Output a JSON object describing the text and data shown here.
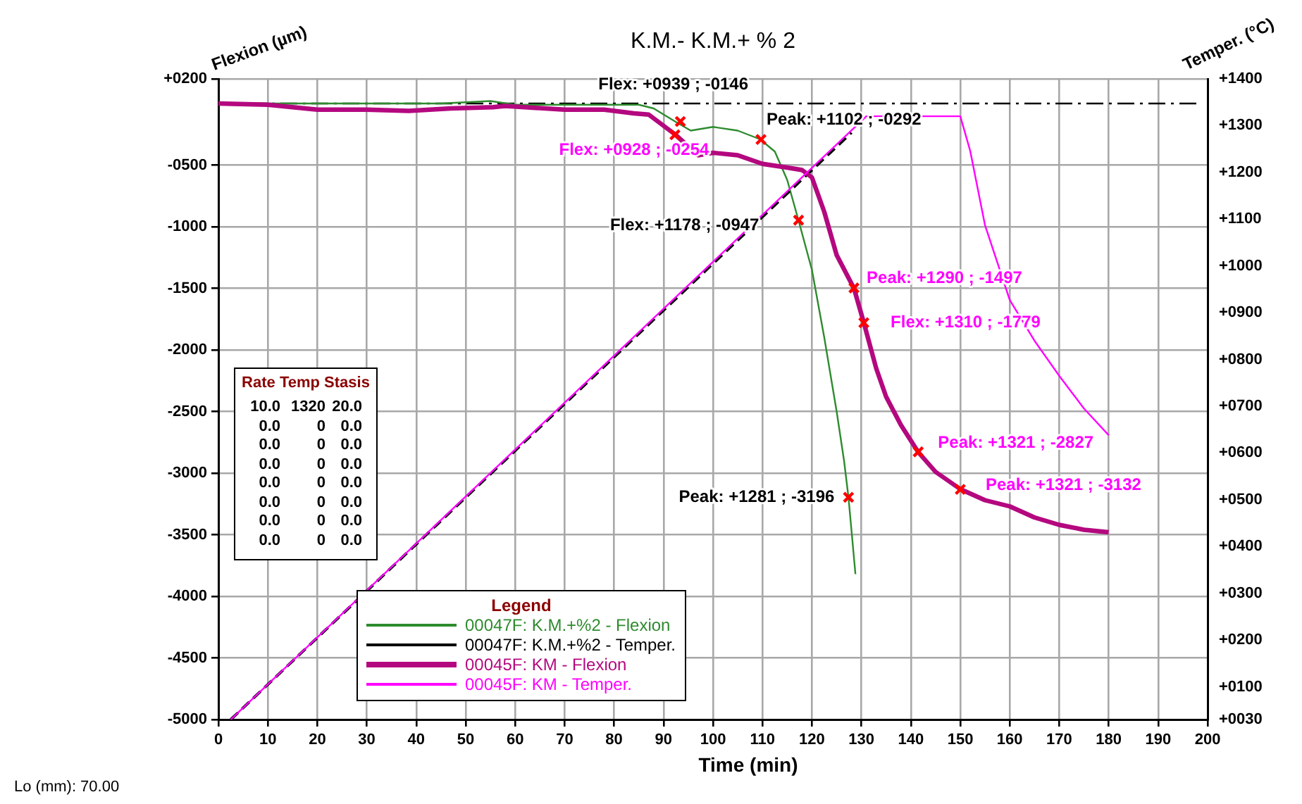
{
  "chart_data": {
    "type": "line",
    "title": "K.M.- K.M.+ % 2",
    "xlabel": "Time (min)",
    "ylabel": "Flexion (µm)",
    "y2label": "Temper. (°C)",
    "legend_title": "Legend",
    "legend": "bottom left",
    "grid": true,
    "xlim": [
      0,
      200
    ],
    "xticks": [
      0,
      10,
      20,
      30,
      40,
      50,
      60,
      70,
      80,
      90,
      100,
      110,
      120,
      130,
      140,
      150,
      160,
      170,
      180,
      190,
      200
    ],
    "ylim": [
      -5000,
      200
    ],
    "yticks": [
      {
        "value": 200,
        "label": "+0200"
      },
      {
        "value": -500,
        "label": "-0500"
      },
      -1000,
      -1500,
      -2000,
      -2500,
      -3000,
      -3500,
      -4000,
      -4500,
      -5000
    ],
    "y2lim": [
      30,
      1400
    ],
    "y2ticks": [
      {
        "value": 30,
        "label": "+0030"
      },
      {
        "value": 100,
        "label": "+0100"
      },
      {
        "value": 200,
        "label": "+0200"
      },
      {
        "value": 300,
        "label": "+0300"
      },
      {
        "value": 400,
        "label": "+0400"
      },
      {
        "value": 500,
        "label": "+0500"
      },
      {
        "value": 600,
        "label": "+0600"
      },
      {
        "value": 700,
        "label": "+0700"
      },
      {
        "value": 800,
        "label": "+0800"
      },
      {
        "value": 900,
        "label": "+0900"
      },
      {
        "value": 1000,
        "label": "+1000"
      },
      {
        "value": 1100,
        "label": "+1100"
      },
      {
        "value": 1200,
        "label": "+1200"
      },
      {
        "value": 1300,
        "label": "+1300"
      },
      {
        "value": 1400,
        "label": "+1400"
      }
    ],
    "series": [
      {
        "name": "00047F: K.M.+%2 - Flexion",
        "type": "line",
        "color": "#2e8b2e",
        "marker": "none",
        "line_style": "solid",
        "x": [
          0,
          20,
          45,
          55,
          60,
          85,
          88,
          92.5,
          95.5,
          100,
          105,
          109.5,
          112.5,
          115,
          117.3,
          120,
          122.5,
          125,
          126.5,
          127.4,
          128.8
        ],
        "values": [
          0,
          0,
          0,
          20,
          -10,
          -10,
          -40,
          -150,
          -220,
          -190,
          -220,
          -290,
          -390,
          -620,
          -950,
          -1350,
          -1900,
          -2500,
          -2900,
          -3200,
          -3820
        ]
      },
      {
        "name": "00047F: K.M.+%2 - Temper.",
        "type": "line",
        "axis": "y2",
        "color": "#000000",
        "marker": "none",
        "line_style": "dashed",
        "x": [
          2.5,
          128
        ],
        "values": [
          30,
          1285
        ]
      },
      {
        "name": "00045F: KM - Flexion",
        "type": "line",
        "color": "#b4087f",
        "marker": "none",
        "line_style": "solid",
        "x": [
          0,
          10,
          20,
          30,
          38.5,
          47,
          55.5,
          58,
          70,
          78,
          84,
          87,
          92.3,
          97,
          100,
          105,
          110,
          115,
          118,
          120,
          122.5,
          125,
          128.5,
          130.5,
          133,
          135,
          138,
          141.5,
          145,
          150,
          155,
          160,
          165,
          170,
          175,
          180
        ],
        "values": [
          0,
          -10,
          -50,
          -50,
          -60,
          -40,
          -30,
          -20,
          -50,
          -50,
          -80,
          -90,
          -250,
          -420,
          -400,
          -420,
          -490,
          -520,
          -540,
          -600,
          -880,
          -1230,
          -1500,
          -1780,
          -2150,
          -2380,
          -2610,
          -2830,
          -2990,
          -3130,
          -3220,
          -3270,
          -3360,
          -3420,
          -3460,
          -3480
        ]
      },
      {
        "name": "00045F: KM - Temper.",
        "type": "line",
        "axis": "y2",
        "color": "#ff00ff",
        "marker": "none",
        "line_style": "solid",
        "x": [
          2.5,
          131,
          150,
          152,
          155,
          160,
          165,
          170,
          175,
          180
        ],
        "values": [
          30,
          1320,
          1320,
          1246,
          1087,
          927,
          840,
          765,
          695,
          638
        ]
      },
      {
        "type": "scatter",
        "color": "#ff0000",
        "marker": "cross",
        "x": [
          93.4,
          109.7,
          117.3,
          127.4
        ],
        "values": [
          -146,
          -292,
          -947,
          -3196
        ]
      },
      {
        "type": "scatter",
        "color": "#ff0000",
        "marker": "cross",
        "x": [
          92.3,
          128.5,
          130.5,
          141.5,
          150
        ],
        "values": [
          -254,
          -1497,
          -1779,
          -2827,
          -3132
        ]
      }
    ],
    "ref_lines": [
      {
        "axis": "y",
        "value": 0,
        "color": "#000000",
        "line_style": "dashed"
      }
    ],
    "annotations": [
      {
        "text": "Flex: +0939 ; -0146",
        "x": 93.4,
        "y": -146
      },
      {
        "text": "Flex: +0928 ; -0254",
        "x": 92.3,
        "y": -254
      },
      {
        "text": "Peak: +1102 ; -0292",
        "x": 109.7,
        "y": -292
      },
      {
        "text": "Flex: +1178 ; -0947",
        "x": 117.3,
        "y": -947
      },
      {
        "text": "Peak: +1290 ; -1497",
        "x": 128.5,
        "y": -1497
      },
      {
        "text": "Flex: +1310 ; -1779",
        "x": 130.5,
        "y": -1779
      },
      {
        "text": "Peak: +1321 ; -2827",
        "x": 141.5,
        "y": -2827
      },
      {
        "text": "Peak: +1321 ; -3132",
        "x": 150,
        "y": -3132
      },
      {
        "text": "Peak: +1281 ; -3196",
        "x": 127.4,
        "y": -3196
      },
      "Rate Temp Stasis",
      "10.0 1320 20.0",
      "0.0 0 0.0",
      "0.0 0 0.0",
      "0.0 0 0.0",
      "0.0 0 0.0",
      "0.0 0 0.0",
      "0.0 0 0.0",
      "0.0 0 0.0",
      "Lo (mm): 70.00"
    ]
  }
}
